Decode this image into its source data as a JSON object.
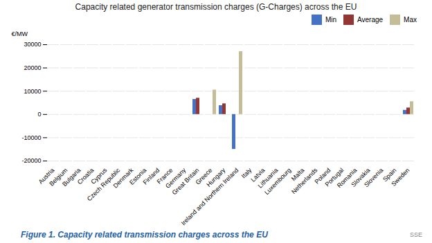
{
  "chart_data": {
    "type": "bar",
    "title": "Capacity related generator transmission charges (G-Charges) across the EU",
    "ylabel": "€/MW",
    "caption": "Figure 1. Capacity related transmission charges across the EU",
    "annotations": [
      "SSE"
    ],
    "categories": [
      "Austria",
      "Belgium",
      "Bulgaria",
      "Croatia",
      "Cyprus",
      "Czech Republic",
      "Denmark",
      "Estonia",
      "Finland",
      "France",
      "Germany",
      "Great Britain",
      "Greece",
      "Hungary",
      "Ireland and Northern Ireland",
      "Italy",
      "Latvia",
      "Lithuania",
      "Luxembourg",
      "Malta",
      "Netherlands",
      "Poland",
      "Portugal",
      "Romania",
      "Slovakia",
      "Slovenia",
      "Spain",
      "Sweden"
    ],
    "series": [
      {
        "name": "Min",
        "color": "#4472C4",
        "values": [
          0,
          0,
          0,
          0,
          0,
          0,
          0,
          0,
          0,
          0,
          0,
          6500,
          0,
          3800,
          -15000,
          0,
          0,
          0,
          0,
          0,
          0,
          0,
          0,
          0,
          0,
          0,
          0,
          1800
        ]
      },
      {
        "name": "Average",
        "color": "#943634",
        "values": [
          0,
          0,
          0,
          0,
          0,
          0,
          0,
          0,
          0,
          0,
          0,
          7000,
          0,
          4600,
          0,
          0,
          0,
          0,
          0,
          0,
          0,
          0,
          0,
          0,
          0,
          0,
          0,
          2800
        ]
      },
      {
        "name": "Max",
        "color": "#C4BD97",
        "values": [
          0,
          0,
          0,
          0,
          0,
          0,
          0,
          0,
          0,
          0,
          0,
          0,
          10500,
          0,
          27000,
          0,
          0,
          0,
          0,
          0,
          0,
          0,
          0,
          0,
          0,
          0,
          0,
          5500
        ]
      }
    ],
    "ylim": [
      -20000,
      30000
    ],
    "yticks": [
      -20000,
      -10000,
      0,
      10000,
      20000,
      30000
    ],
    "grid": true,
    "legend": "upper right"
  }
}
